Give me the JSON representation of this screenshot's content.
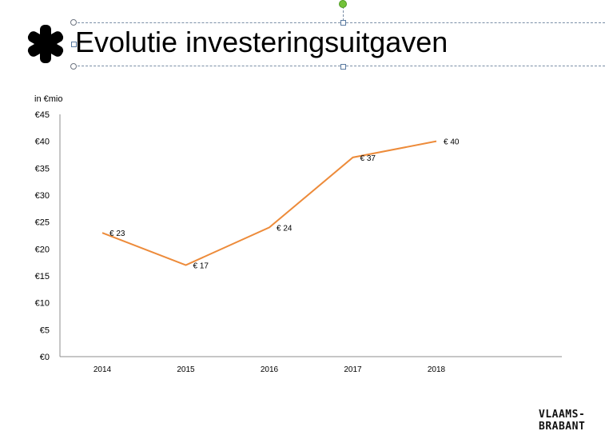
{
  "slide": {
    "title": "Evolutie investeringsuitgaven",
    "icon": "asterisk-icon"
  },
  "logo": {
    "line1": "VLAAMS-",
    "line2": "BRABANT"
  },
  "chart_data": {
    "type": "line",
    "title": "",
    "xlabel": "",
    "ylabel": "in €mio",
    "categories": [
      "2014",
      "2015",
      "2016",
      "2017",
      "2018"
    ],
    "series": [
      {
        "values": [
          23,
          17,
          24,
          37,
          40
        ],
        "data_labels": [
          "€ 23",
          "€ 17",
          "€ 24",
          "€ 37",
          "€ 40"
        ],
        "color": "#ed8b3a"
      }
    ],
    "ylim": [
      0,
      45
    ],
    "y_ticks": [
      0,
      5,
      10,
      15,
      20,
      25,
      30,
      35,
      40,
      45
    ],
    "y_tick_labels": [
      "€0",
      "€5",
      "€10",
      "€15",
      "€20",
      "€25",
      "€30",
      "€35",
      "€40",
      "€45"
    ],
    "grid": false,
    "legend": "none"
  }
}
